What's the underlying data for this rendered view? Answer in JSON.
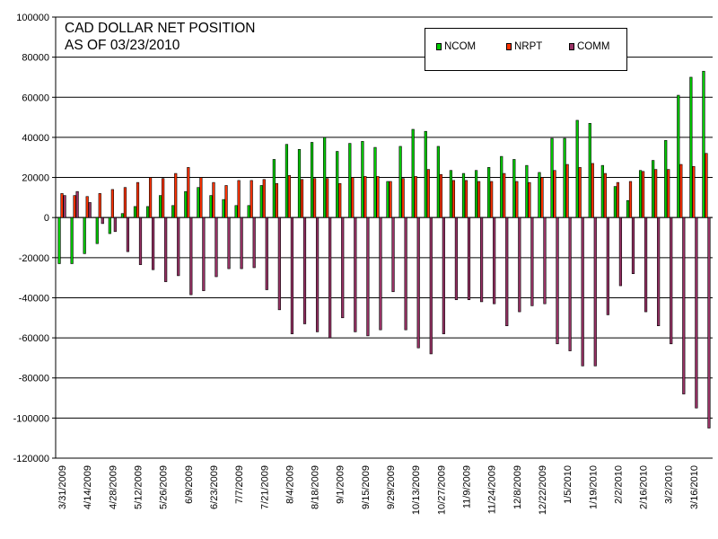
{
  "chart_data": {
    "type": "bar",
    "title": "CAD DOLLAR NET POSITION\nAS OF 03/23/2010",
    "xlabel": "",
    "ylabel": "",
    "ylim": [
      -120000,
      100000
    ],
    "yticks": [
      100000,
      80000,
      60000,
      40000,
      20000,
      0,
      -20000,
      -40000,
      -60000,
      -80000,
      -100000,
      -120000
    ],
    "grid": true,
    "legend_position": "top-right",
    "categories": [
      "3/31/2009",
      "4/7/2009",
      "4/14/2009",
      "4/21/2009",
      "4/28/2009",
      "5/5/2009",
      "5/12/2009",
      "5/19/2009",
      "5/26/2009",
      "6/2/2009",
      "6/9/2009",
      "6/16/2009",
      "6/23/2009",
      "6/30/2009",
      "7/7/2009",
      "7/14/2009",
      "7/21/2009",
      "7/28/2009",
      "8/4/2009",
      "8/11/2009",
      "8/18/2009",
      "8/25/2009",
      "9/1/2009",
      "9/8/2009",
      "9/15/2009",
      "9/22/2009",
      "9/29/2009",
      "10/6/2009",
      "10/13/2009",
      "10/20/2009",
      "10/27/2009",
      "11/3/2009",
      "11/9/2009",
      "11/17/2009",
      "11/24/2009",
      "12/1/2009",
      "12/8/2009",
      "12/15/2009",
      "12/22/2009",
      "12/29/2009",
      "1/5/2010",
      "1/12/2010",
      "1/19/2010",
      "1/26/2010",
      "2/2/2010",
      "2/9/2010",
      "2/16/2010",
      "2/23/2010",
      "3/2/2010",
      "3/9/2010",
      "3/16/2010",
      "3/23/2010"
    ],
    "tick_labels": [
      "3/31/2009",
      "4/14/2009",
      "4/28/2009",
      "5/12/2009",
      "5/26/2009",
      "6/9/2009",
      "6/23/2009",
      "7/7/2009",
      "7/21/2009",
      "8/4/2009",
      "8/18/2009",
      "9/1/2009",
      "9/15/2009",
      "9/29/2009",
      "10/13/2009",
      "10/27/2009",
      "11/9/2009",
      "11/24/2009",
      "12/8/2009",
      "12/22/2009",
      "1/5/2010",
      "1/19/2010",
      "2/2/2010",
      "2/16/2010",
      "3/2/2010",
      "3/16/2010"
    ],
    "series": [
      {
        "name": "NCOM",
        "color": "#00cc00",
        "values": [
          -23000,
          -23000,
          -18000,
          -13000,
          -8000,
          2000,
          5500,
          5500,
          11000,
          6000,
          13000,
          15000,
          11000,
          9000,
          6000,
          6000,
          16000,
          29000,
          36500,
          34000,
          37500,
          40000,
          33000,
          37000,
          38000,
          35000,
          18000,
          35500,
          44000,
          43000,
          35500,
          23500,
          22000,
          23500,
          25000,
          30500,
          29000,
          26000,
          22500,
          39500,
          39500,
          48500,
          47000,
          26000,
          15500,
          8500,
          23500,
          28500,
          38500,
          61000,
          70000,
          73000
        ]
      },
      {
        "name": "NRPT",
        "color": "#ff3300",
        "values": [
          12000,
          11000,
          10500,
          12000,
          14000,
          15000,
          17500,
          20000,
          19500,
          22000,
          25000,
          20000,
          17500,
          16000,
          18500,
          18500,
          19000,
          17000,
          21000,
          19000,
          19500,
          19500,
          17000,
          20000,
          20500,
          20500,
          18000,
          19500,
          20500,
          24000,
          21500,
          18500,
          18500,
          18000,
          18000,
          22000,
          18000,
          17500,
          20000,
          23500,
          26500,
          25000,
          27000,
          22000,
          17500,
          18000,
          23000,
          24000,
          24000,
          26500,
          25500,
          32000
        ]
      },
      {
        "name": "COMM",
        "color": "#993366",
        "values": [
          11000,
          13000,
          7500,
          -3000,
          -7000,
          -17000,
          -23500,
          -26000,
          -32000,
          -29000,
          -38500,
          -36500,
          -29500,
          -25500,
          -25500,
          -25000,
          -36000,
          -46000,
          -58000,
          -53000,
          -57000,
          -60000,
          -50000,
          -57000,
          -59000,
          -56000,
          -37000,
          -56000,
          -65000,
          -68000,
          -58000,
          -41000,
          -41000,
          -42000,
          -43000,
          -54000,
          -47000,
          -44000,
          -43000,
          -63000,
          -66500,
          -74000,
          -74000,
          -48500,
          -34000,
          -28000,
          -47000,
          -54000,
          -63000,
          -88000,
          -95000,
          -105000
        ]
      }
    ]
  }
}
